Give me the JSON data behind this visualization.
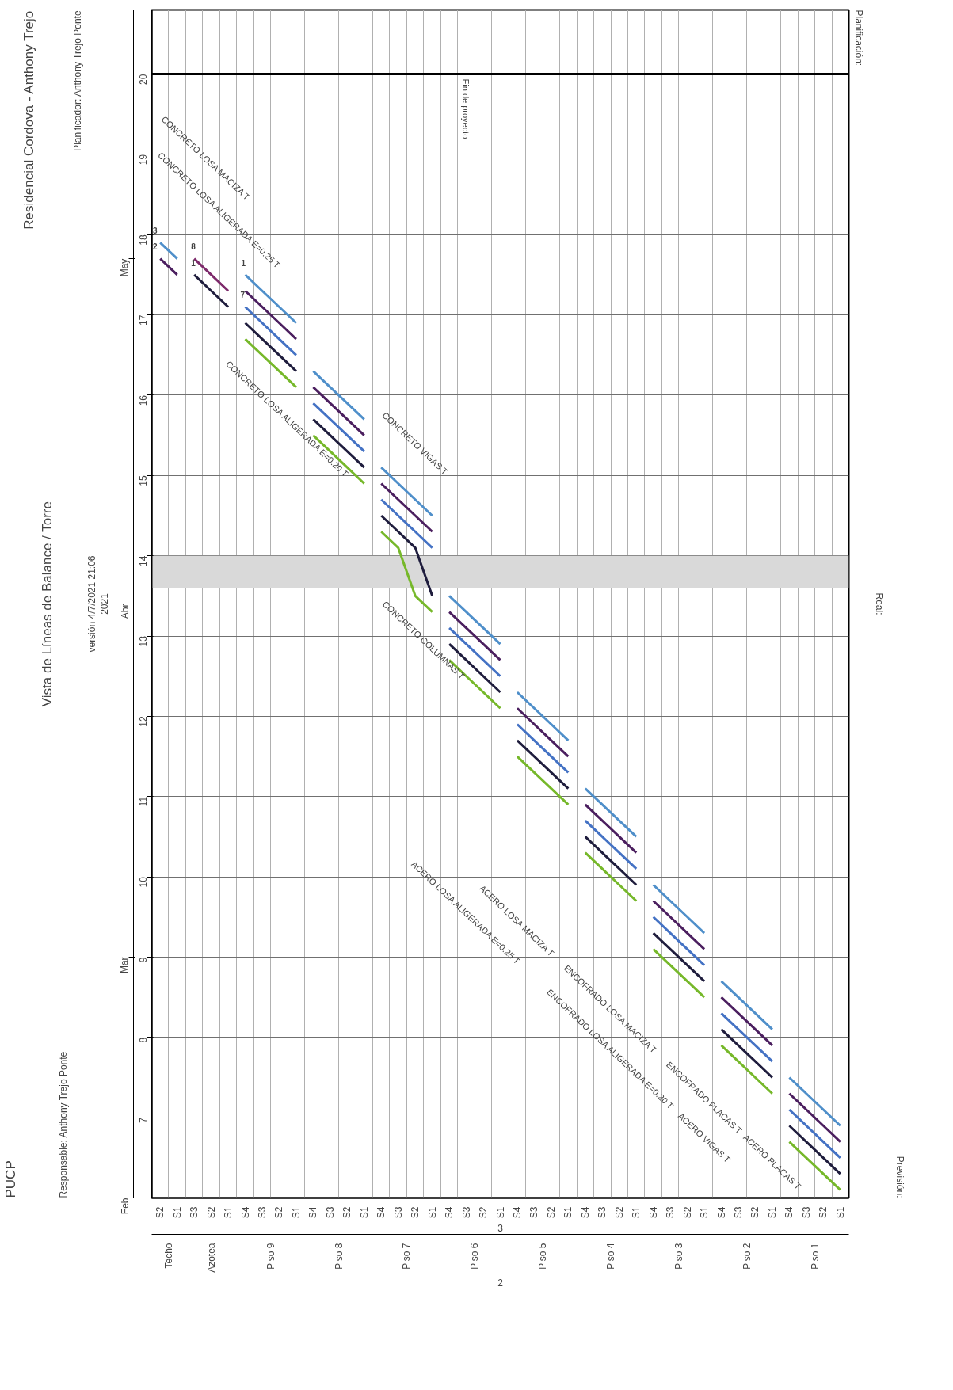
{
  "chart_data": {
    "type": "line",
    "title": "Vista de Líneas de Balance / Torre",
    "subtitle": "versión 4/7/2021 21:06",
    "categories": [
      "S2",
      "S1",
      "S3",
      "S2",
      "S1",
      "S4",
      "S3",
      "S2",
      "S1",
      "S4",
      "S3",
      "S2",
      "S1",
      "S4",
      "S3",
      "S2",
      "S1",
      "S4",
      "S3",
      "S2",
      "S1",
      "S4",
      "S3",
      "S2",
      "S1",
      "S4",
      "S3",
      "S2",
      "S1",
      "S4",
      "S3",
      "S2",
      "S1",
      "S4",
      "S3",
      "S2",
      "S1",
      "S4",
      "S3",
      "S2",
      "S1"
    ],
    "ylim": [
      6,
      20.8
    ],
    "yticks": [
      {
        "value": 6,
        "label": null
      },
      7,
      8,
      9,
      10,
      11,
      12,
      13,
      14,
      15,
      16,
      17,
      18,
      19,
      20
    ],
    "grid": true,
    "series": [
      {
        "color": "#4f8fca",
        "values": [
          17.9,
          17.7,
          null,
          null,
          null,
          null,
          null,
          null,
          null,
          16.3,
          16.1,
          15.9,
          15.7,
          null,
          null,
          null,
          null,
          13.5,
          13.3,
          13.1,
          12.9,
          null,
          null,
          null,
          null,
          11.1,
          10.9,
          10.7,
          10.5,
          null,
          null,
          null,
          null,
          8.7,
          8.5,
          8.3,
          8.1,
          null,
          null,
          null,
          null
        ]
      },
      {
        "color": "#4f8fca",
        "values": [
          null,
          null,
          null,
          null,
          null,
          17.5,
          17.3,
          17.1,
          16.9,
          null,
          null,
          null,
          null,
          15.1,
          14.9,
          14.7,
          14.5,
          null,
          null,
          null,
          null,
          12.3,
          12.1,
          11.9,
          11.7,
          null,
          null,
          null,
          null,
          9.9,
          9.7,
          9.5,
          9.3,
          null,
          null,
          null,
          null,
          7.5,
          7.3,
          7.1,
          6.9
        ]
      },
      {
        "color": "#4b1f5f",
        "values": [
          17.7,
          17.5,
          null,
          null,
          null,
          null,
          null,
          null,
          null,
          16.1,
          15.9,
          15.7,
          15.5,
          null,
          null,
          null,
          null,
          13.3,
          13.1,
          12.9,
          12.7,
          null,
          null,
          null,
          null,
          10.9,
          10.7,
          10.5,
          10.3,
          null,
          null,
          null,
          null,
          8.5,
          8.3,
          8.1,
          7.9,
          null,
          null,
          null,
          null
        ]
      },
      {
        "color": "#4b1f5f",
        "values": [
          null,
          null,
          null,
          null,
          null,
          17.3,
          17.1,
          16.9,
          16.7,
          null,
          null,
          null,
          null,
          14.9,
          14.7,
          14.5,
          14.3,
          null,
          null,
          null,
          null,
          12.1,
          11.9,
          11.7,
          11.5,
          null,
          null,
          null,
          null,
          9.7,
          9.5,
          9.3,
          9.1,
          null,
          null,
          null,
          null,
          7.3,
          7.1,
          6.9,
          6.7
        ]
      },
      {
        "color": "#4472c4",
        "values": [
          null,
          null,
          null,
          null,
          null,
          null,
          null,
          null,
          null,
          15.9,
          15.7,
          15.5,
          15.3,
          null,
          null,
          null,
          null,
          13.1,
          12.9,
          12.7,
          12.5,
          null,
          null,
          null,
          null,
          10.7,
          10.5,
          10.3,
          10.1,
          null,
          null,
          null,
          null,
          8.3,
          8.1,
          7.9,
          7.7,
          null,
          null,
          null,
          null
        ]
      },
      {
        "color": "#4472c4",
        "values": [
          null,
          null,
          null,
          null,
          null,
          17.1,
          16.9,
          16.7,
          16.5,
          null,
          null,
          null,
          null,
          14.7,
          14.5,
          14.3,
          14.1,
          null,
          null,
          null,
          null,
          11.9,
          11.7,
          11.5,
          11.3,
          null,
          null,
          null,
          null,
          9.5,
          9.3,
          9.1,
          8.9,
          null,
          null,
          null,
          null,
          7.1,
          6.9,
          6.7,
          6.5
        ]
      },
      {
        "color": "#1f1d3d",
        "values": [
          null,
          null,
          17.5,
          17.3,
          17.1,
          null,
          null,
          null,
          null,
          15.7,
          15.5,
          15.3,
          15.1,
          null,
          null,
          null,
          null,
          12.9,
          12.7,
          12.5,
          12.3,
          null,
          null,
          null,
          null,
          10.5,
          10.3,
          10.1,
          9.9,
          null,
          null,
          null,
          null,
          8.1,
          7.9,
          7.7,
          7.5,
          null,
          null,
          null,
          null
        ]
      },
      {
        "color": "#1f1d3d",
        "values": [
          null,
          null,
          null,
          null,
          null,
          16.9,
          16.7,
          16.5,
          16.3,
          null,
          null,
          null,
          null,
          14.5,
          14.3,
          14.1,
          13.5,
          null,
          null,
          null,
          null,
          11.7,
          11.5,
          11.3,
          11.1,
          null,
          null,
          null,
          null,
          9.3,
          9.1,
          8.9,
          8.7,
          null,
          null,
          null,
          null,
          6.9,
          6.7,
          6.5,
          6.3
        ]
      },
      {
        "color": "#76b82a",
        "values": [
          null,
          null,
          null,
          null,
          null,
          null,
          null,
          null,
          null,
          15.5,
          15.3,
          15.1,
          14.9,
          null,
          null,
          null,
          null,
          12.7,
          12.5,
          12.3,
          12.1,
          null,
          null,
          null,
          null,
          10.3,
          10.1,
          9.9,
          9.7,
          null,
          null,
          null,
          null,
          7.9,
          7.7,
          7.5,
          7.3,
          null,
          null,
          null,
          null
        ]
      },
      {
        "color": "#76b82a",
        "values": [
          null,
          null,
          null,
          null,
          null,
          16.7,
          16.5,
          16.3,
          16.1,
          null,
          null,
          null,
          null,
          14.3,
          14.1,
          13.5,
          13.3,
          null,
          null,
          null,
          null,
          11.5,
          11.3,
          11.1,
          10.9,
          null,
          null,
          null,
          null,
          9.1,
          8.9,
          8.7,
          8.5,
          null,
          null,
          null,
          null,
          6.7,
          6.5,
          6.3,
          6.1
        ]
      },
      {
        "color": "#7d2a6b",
        "values": [
          null,
          null,
          17.7,
          17.5,
          17.3,
          null,
          null,
          null,
          null,
          null,
          null,
          null,
          null,
          null,
          null,
          null,
          null,
          null,
          null,
          null,
          null,
          null,
          null,
          null,
          null,
          null,
          null,
          null,
          null,
          null,
          null,
          null,
          null,
          null,
          null,
          null,
          null,
          null,
          null,
          null,
          null
        ]
      }
    ],
    "ref_lines": [
      {
        "axis": "y",
        "value": 20,
        "label": "Fin de proyecto",
        "color": "#000000"
      }
    ],
    "bands": [
      {
        "axis": "y",
        "from": 13.6,
        "to": 14.0,
        "color": "#d9d9d9"
      }
    ],
    "annotations": [
      "PUCP",
      "Responsable: Anthony Trejo Ponte",
      "Residencial Cordova - Anthony Trejo",
      "Planificador: Anthony Trejo Ponte",
      "2",
      "3",
      "Planificación:",
      "Real:",
      "Previsión:",
      "2021",
      "Feb",
      "Mar",
      "Abr",
      "May",
      "Techo",
      "Azotea",
      "Piso 9",
      "Piso 8",
      "Piso 7",
      "Piso 6",
      "Piso 5",
      "Piso 4",
      "Piso 3",
      "Piso 2",
      "Piso 1",
      "ACERO PLACAS T",
      "ACERO VIGAS T",
      "ENCOFRADO PLACAS T",
      "ENCOFRADO LOSA ALIGERADA E=0.20 T",
      "ENCOFRADO LOSA MACIZA T",
      "ACERO LOSA ALIGERADA E=0.25 T",
      "ACERO LOSA MACIZA T",
      "CONCRETO COLUMNAS T",
      "CONCRETO VIGAS T",
      "CONCRETO LOSA ALIGERADA E=0.20 T",
      "CONCRETO LOSA ALIGERADA E=0.25 T",
      "CONCRETO LOSA MACIZA T",
      "3",
      "2",
      "8",
      "1",
      "1",
      "7"
    ]
  }
}
